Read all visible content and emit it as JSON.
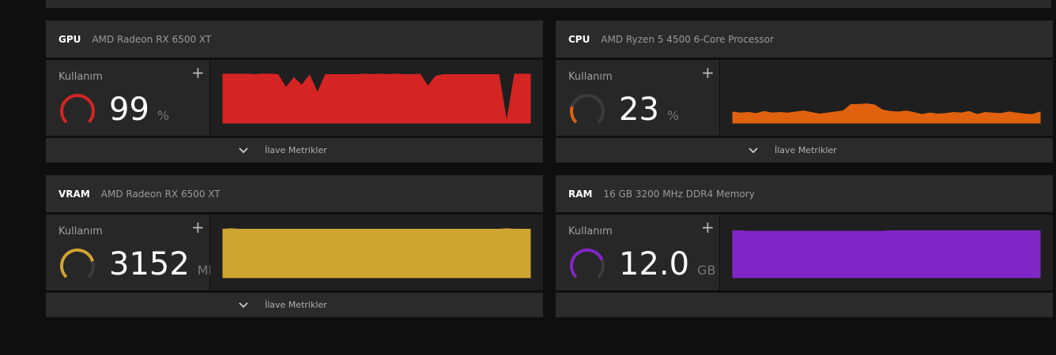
{
  "panels": [
    {
      "label": "GPU",
      "device": "AMD Radeon RX 6500 XT",
      "metric": "Kullanım",
      "value": "99",
      "unit": "%",
      "more": "İlave Metrikler",
      "color": "#d42424",
      "gauge": 99,
      "history_ylim": [
        0,
        100
      ],
      "history": [
        97,
        97,
        97,
        97,
        96,
        97,
        97,
        96,
        70,
        90,
        75,
        95,
        60,
        96,
        96,
        96,
        96,
        96,
        97,
        96,
        97,
        96,
        97,
        96,
        96,
        97,
        73,
        93,
        96,
        96,
        96,
        96,
        96,
        96,
        96,
        96,
        3,
        97,
        97,
        97
      ]
    },
    {
      "label": "CPU",
      "device": "AMD Ryzen 5 4500 6-Core Processor",
      "metric": "Kullanım",
      "value": "23",
      "unit": "%",
      "more": "İlave Metrikler",
      "color": "#e0620e",
      "gauge": 23,
      "history_ylim": [
        0,
        100
      ],
      "history": [
        22,
        20,
        21,
        19,
        23,
        20,
        21,
        20,
        22,
        24,
        21,
        18,
        20,
        22,
        24,
        37,
        37,
        38,
        36,
        26,
        23,
        22,
        24,
        21,
        17,
        20,
        18,
        19,
        21,
        20,
        23,
        17,
        21,
        20,
        19,
        22,
        20,
        18,
        17,
        22
      ]
    },
    {
      "label": "VRAM",
      "device": "AMD Radeon RX 6500 XT",
      "metric": "Kullanım",
      "value": "3152",
      "unit": "MB",
      "more": "İlave Metrikler",
      "color": "#cfa531",
      "gauge": 77,
      "history_ylim": [
        0,
        100
      ],
      "history": [
        96,
        97,
        96,
        96,
        96,
        96,
        96,
        96,
        96,
        96,
        96,
        96,
        96,
        96,
        96,
        96,
        96,
        96,
        96,
        96,
        96,
        96,
        96,
        96,
        96,
        96,
        96,
        96,
        96,
        96,
        96,
        96,
        96,
        96,
        96,
        96,
        97,
        96,
        96,
        96
      ]
    },
    {
      "label": "RAM",
      "device": "16 GB 3200 MHz DDR4 Memory",
      "metric": "Kullanım",
      "value": "12.0",
      "unit": "GB",
      "color": "#8126c6",
      "gauge": 75,
      "history_ylim": [
        0,
        100
      ],
      "history": [
        93,
        93,
        92,
        92,
        92,
        92,
        92,
        92,
        92,
        92,
        92,
        92,
        92,
        92,
        92,
        92,
        92,
        92,
        92,
        92,
        93,
        93,
        93,
        93,
        93,
        93,
        93,
        93,
        93,
        93,
        93,
        93,
        93,
        93,
        93,
        93,
        93,
        93,
        93,
        93
      ]
    }
  ]
}
